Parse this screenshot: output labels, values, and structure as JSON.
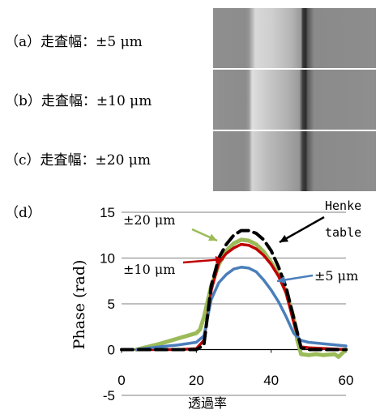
{
  "panels": [
    {
      "label": "（a）走査幅：±5 μm"
    },
    {
      "label": "（b）走査幅：±10 μm"
    },
    {
      "label": "（c）走査幅：±20 μm"
    }
  ],
  "panel_d_label": "（d）",
  "chart_data": {
    "type": "line",
    "xlabel": "透過率",
    "ylabel": "Phase (rad)",
    "xlim": [
      0,
      60
    ],
    "ylim": [
      -5,
      15
    ],
    "xticks": [
      "0",
      "20",
      "40",
      "60"
    ],
    "yticks": [
      "-5",
      "0",
      "5",
      "10",
      "15"
    ],
    "grid": "horizontal",
    "series": [
      {
        "name": "±20 μm",
        "color": "#9bbb59",
        "x": [
          4,
          10,
          15,
          20,
          21,
          22,
          24,
          26,
          28,
          30,
          32,
          34,
          36,
          38,
          40,
          42,
          44,
          46,
          47,
          48,
          50,
          52,
          54,
          57,
          58,
          60
        ],
        "y": [
          0,
          0.6,
          1.2,
          1.8,
          2.2,
          3.5,
          7,
          9.3,
          10.8,
          11.6,
          12,
          11.9,
          11.5,
          10.7,
          9.5,
          8.2,
          6.3,
          3.5,
          1,
          -0.5,
          -0.6,
          -0.5,
          -0.6,
          -0.5,
          -0.8,
          0
        ]
      },
      {
        "name": "±10 μm",
        "color": "#c00000",
        "x": [
          4,
          10,
          15,
          20,
          22,
          24,
          26,
          28,
          30,
          32,
          34,
          36,
          38,
          40,
          42,
          44,
          46,
          48,
          50,
          55,
          60
        ],
        "y": [
          0,
          0,
          0,
          0.1,
          1,
          6.5,
          9.5,
          10.5,
          11.1,
          11.5,
          11.4,
          11,
          10.3,
          9.3,
          8,
          6.2,
          3,
          0.3,
          0.2,
          0.1,
          0
        ]
      },
      {
        "name": "±5 μm",
        "color": "#4a7ebb",
        "x": [
          4,
          10,
          15,
          20,
          22,
          24,
          26,
          28,
          30,
          32,
          34,
          36,
          38,
          40,
          42,
          44,
          46,
          48,
          50,
          55,
          60
        ],
        "y": [
          0,
          0.3,
          0.5,
          0.8,
          1.5,
          5.5,
          7.3,
          8.2,
          8.8,
          9,
          8.9,
          8.5,
          7.6,
          6.5,
          5.2,
          3.6,
          1.8,
          1,
          0.8,
          0.6,
          0.4
        ]
      },
      {
        "name": "Henke table",
        "color": "#000000",
        "x": [
          0,
          10,
          20,
          22,
          24,
          26,
          28,
          30,
          32,
          34,
          36,
          38,
          40,
          42,
          44,
          46,
          48,
          50,
          55,
          60
        ],
        "y": [
          0,
          0,
          0,
          0.5,
          7,
          10,
          11.5,
          12.5,
          13,
          13,
          12.7,
          12,
          10.8,
          9,
          6.8,
          3.5,
          0.2,
          0,
          0,
          0
        ]
      }
    ],
    "annotations": [
      {
        "text": "±20 μm",
        "series": "±20 μm"
      },
      {
        "text": "±10 μm",
        "series": "±10 μm"
      },
      {
        "text": "±5 μm",
        "series": "±5 μm"
      },
      {
        "text": "Henke",
        "series": "Henke table"
      },
      {
        "text": "table",
        "series": "Henke table"
      }
    ]
  }
}
